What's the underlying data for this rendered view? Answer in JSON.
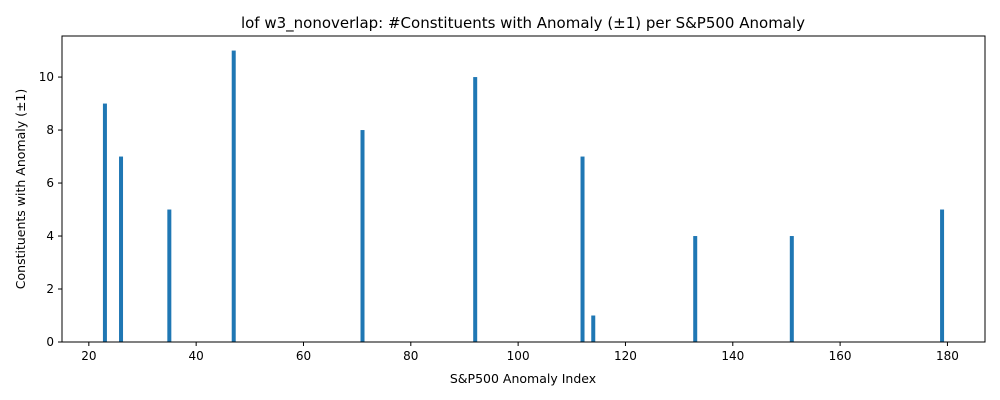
{
  "chart_data": {
    "type": "bar",
    "title": "lof w3_nonoverlap: #Constituents with Anomaly (±1) per S&P500 Anomaly",
    "xlabel": "S&P500 Anomaly Index",
    "ylabel": "Constituents with Anomaly (±1)",
    "x": [
      23,
      26,
      35,
      47,
      71,
      92,
      112,
      114,
      133,
      151,
      179
    ],
    "values": [
      9,
      7,
      5,
      11,
      8,
      10,
      7,
      1,
      4,
      4,
      5
    ],
    "xlim": [
      15,
      187
    ],
    "ylim": [
      0,
      11.55
    ],
    "xticks": [
      20,
      40,
      60,
      80,
      100,
      120,
      140,
      160,
      180
    ],
    "yticks": [
      0,
      2,
      4,
      6,
      8,
      10
    ],
    "bar_color": "#1f77b4",
    "grid": false
  }
}
